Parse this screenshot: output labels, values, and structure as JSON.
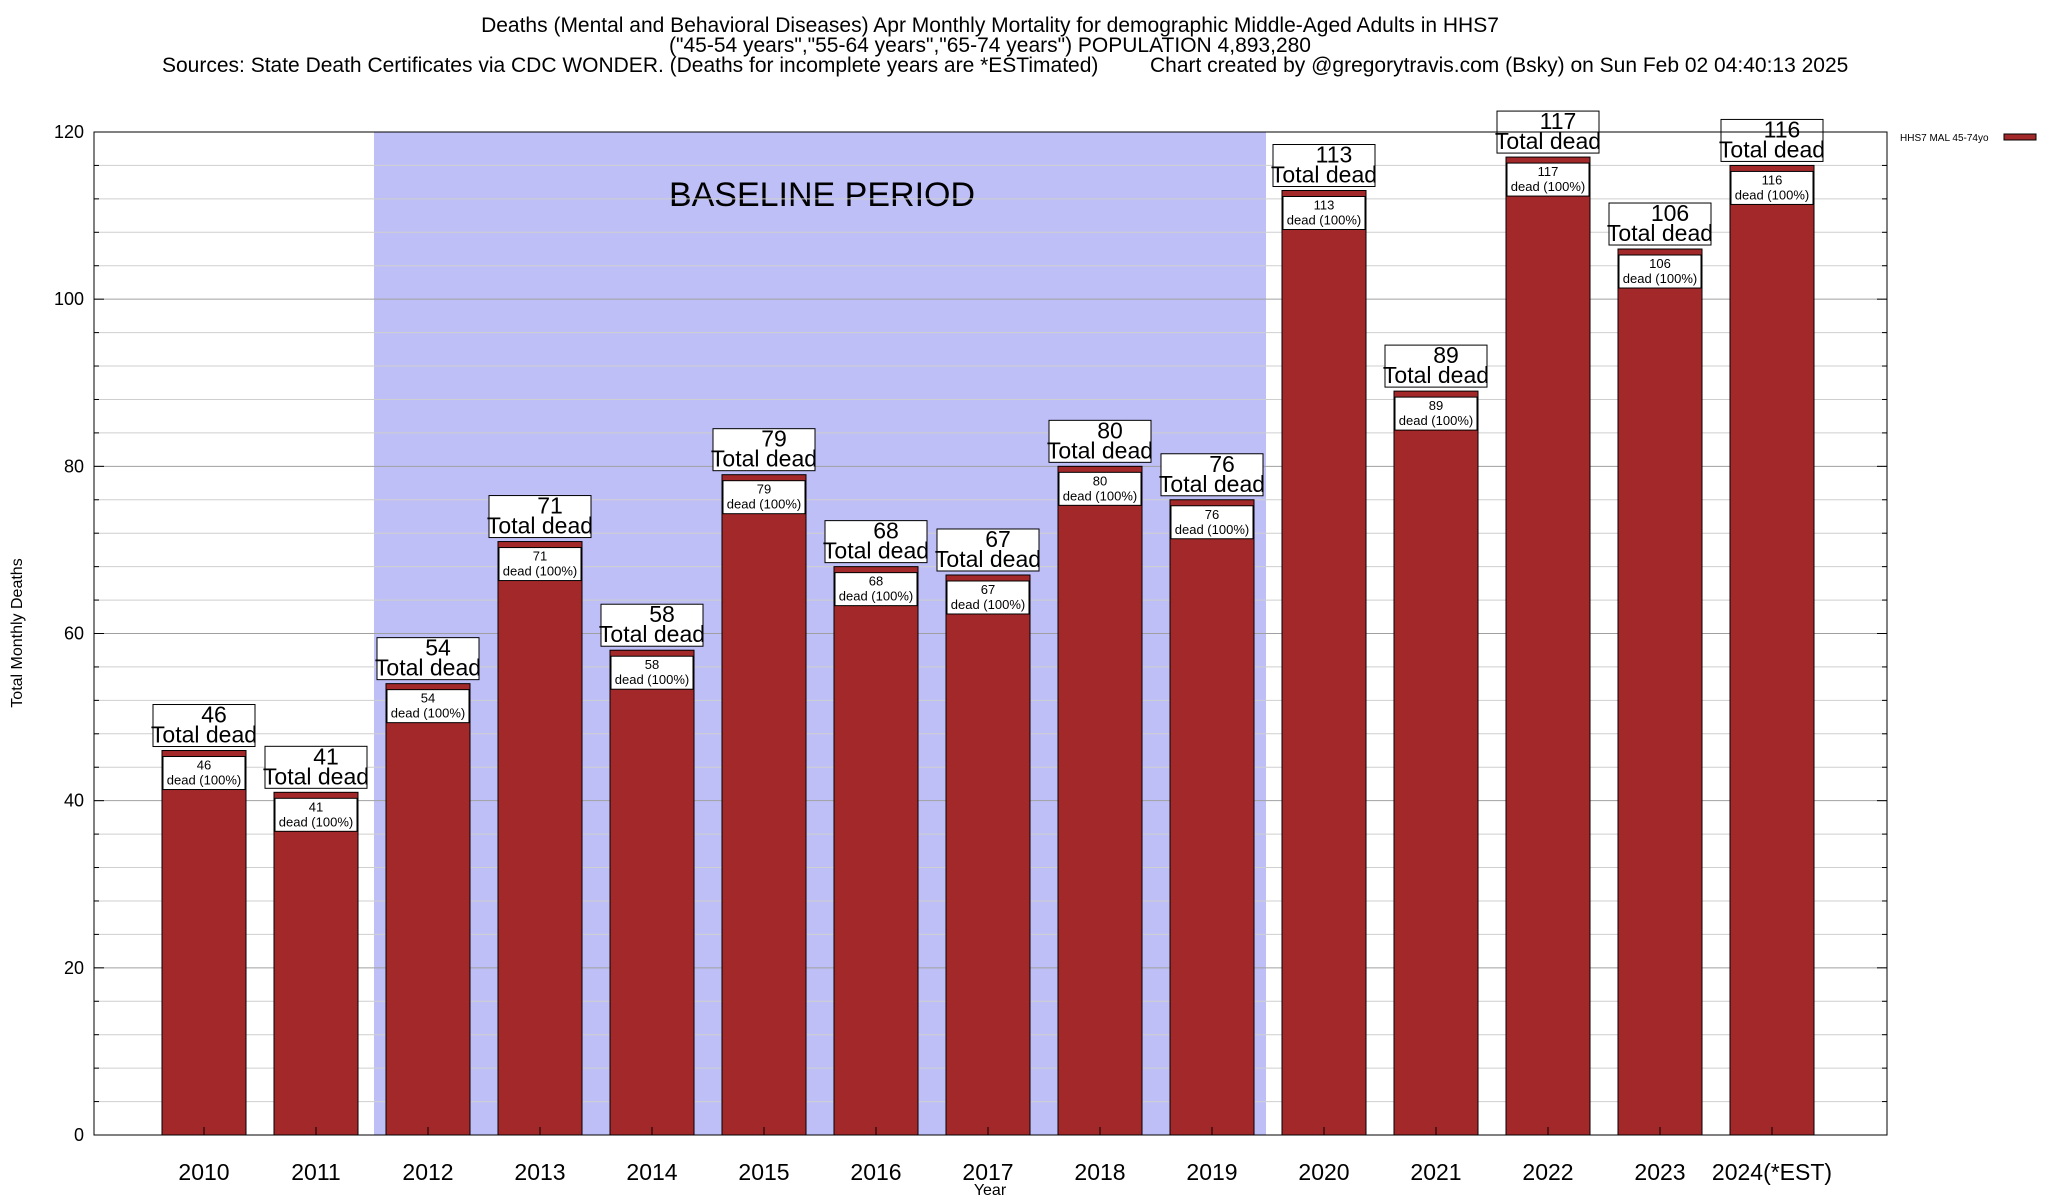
{
  "title": {
    "line1": "Deaths (Mental and Behavioral Diseases) Apr Monthly Mortality for demographic Middle-Aged Adults in HHS7",
    "line2": "(\"45-54 years\",\"55-64 years\",\"65-74 years\") POPULATION 4,893,280",
    "line3_left": "Sources: State Death Certificates via CDC WONDER. (Deaths for incomplete years are *ESTimated)",
    "line3_right": "Chart created by @gregorytravis.com (Bsky) on Sun Feb 02 04:40:13 2025"
  },
  "legend": {
    "label": "HHS7 MAL 45-74yo",
    "color": "#a3282a"
  },
  "annotation": {
    "baseline_text": "BASELINE PERIOD",
    "baseline_color": "#bfbff8"
  },
  "chart_data": {
    "type": "bar",
    "categories": [
      "2010",
      "2011",
      "2012",
      "2013",
      "2014",
      "2015",
      "2016",
      "2017",
      "2018",
      "2019",
      "2020",
      "2021",
      "2022",
      "2023",
      "2024(*EST)"
    ],
    "series": [
      {
        "name": "HHS7 MAL 45-74yo",
        "values": [
          46,
          41,
          54,
          71,
          58,
          79,
          68,
          67,
          80,
          76,
          113,
          89,
          117,
          106,
          116
        ]
      }
    ],
    "box_label_top": "Total dead",
    "box_label_inner": "dead (100%)",
    "xlabel": "Year",
    "ylabel": "Total Monthly Deaths",
    "ylim": [
      0,
      120
    ],
    "yticks": [
      0,
      20,
      40,
      60,
      80,
      100,
      120
    ],
    "baseline_range": [
      "2012",
      "2019"
    ],
    "bar_color": "#a3282a",
    "grid": true
  }
}
